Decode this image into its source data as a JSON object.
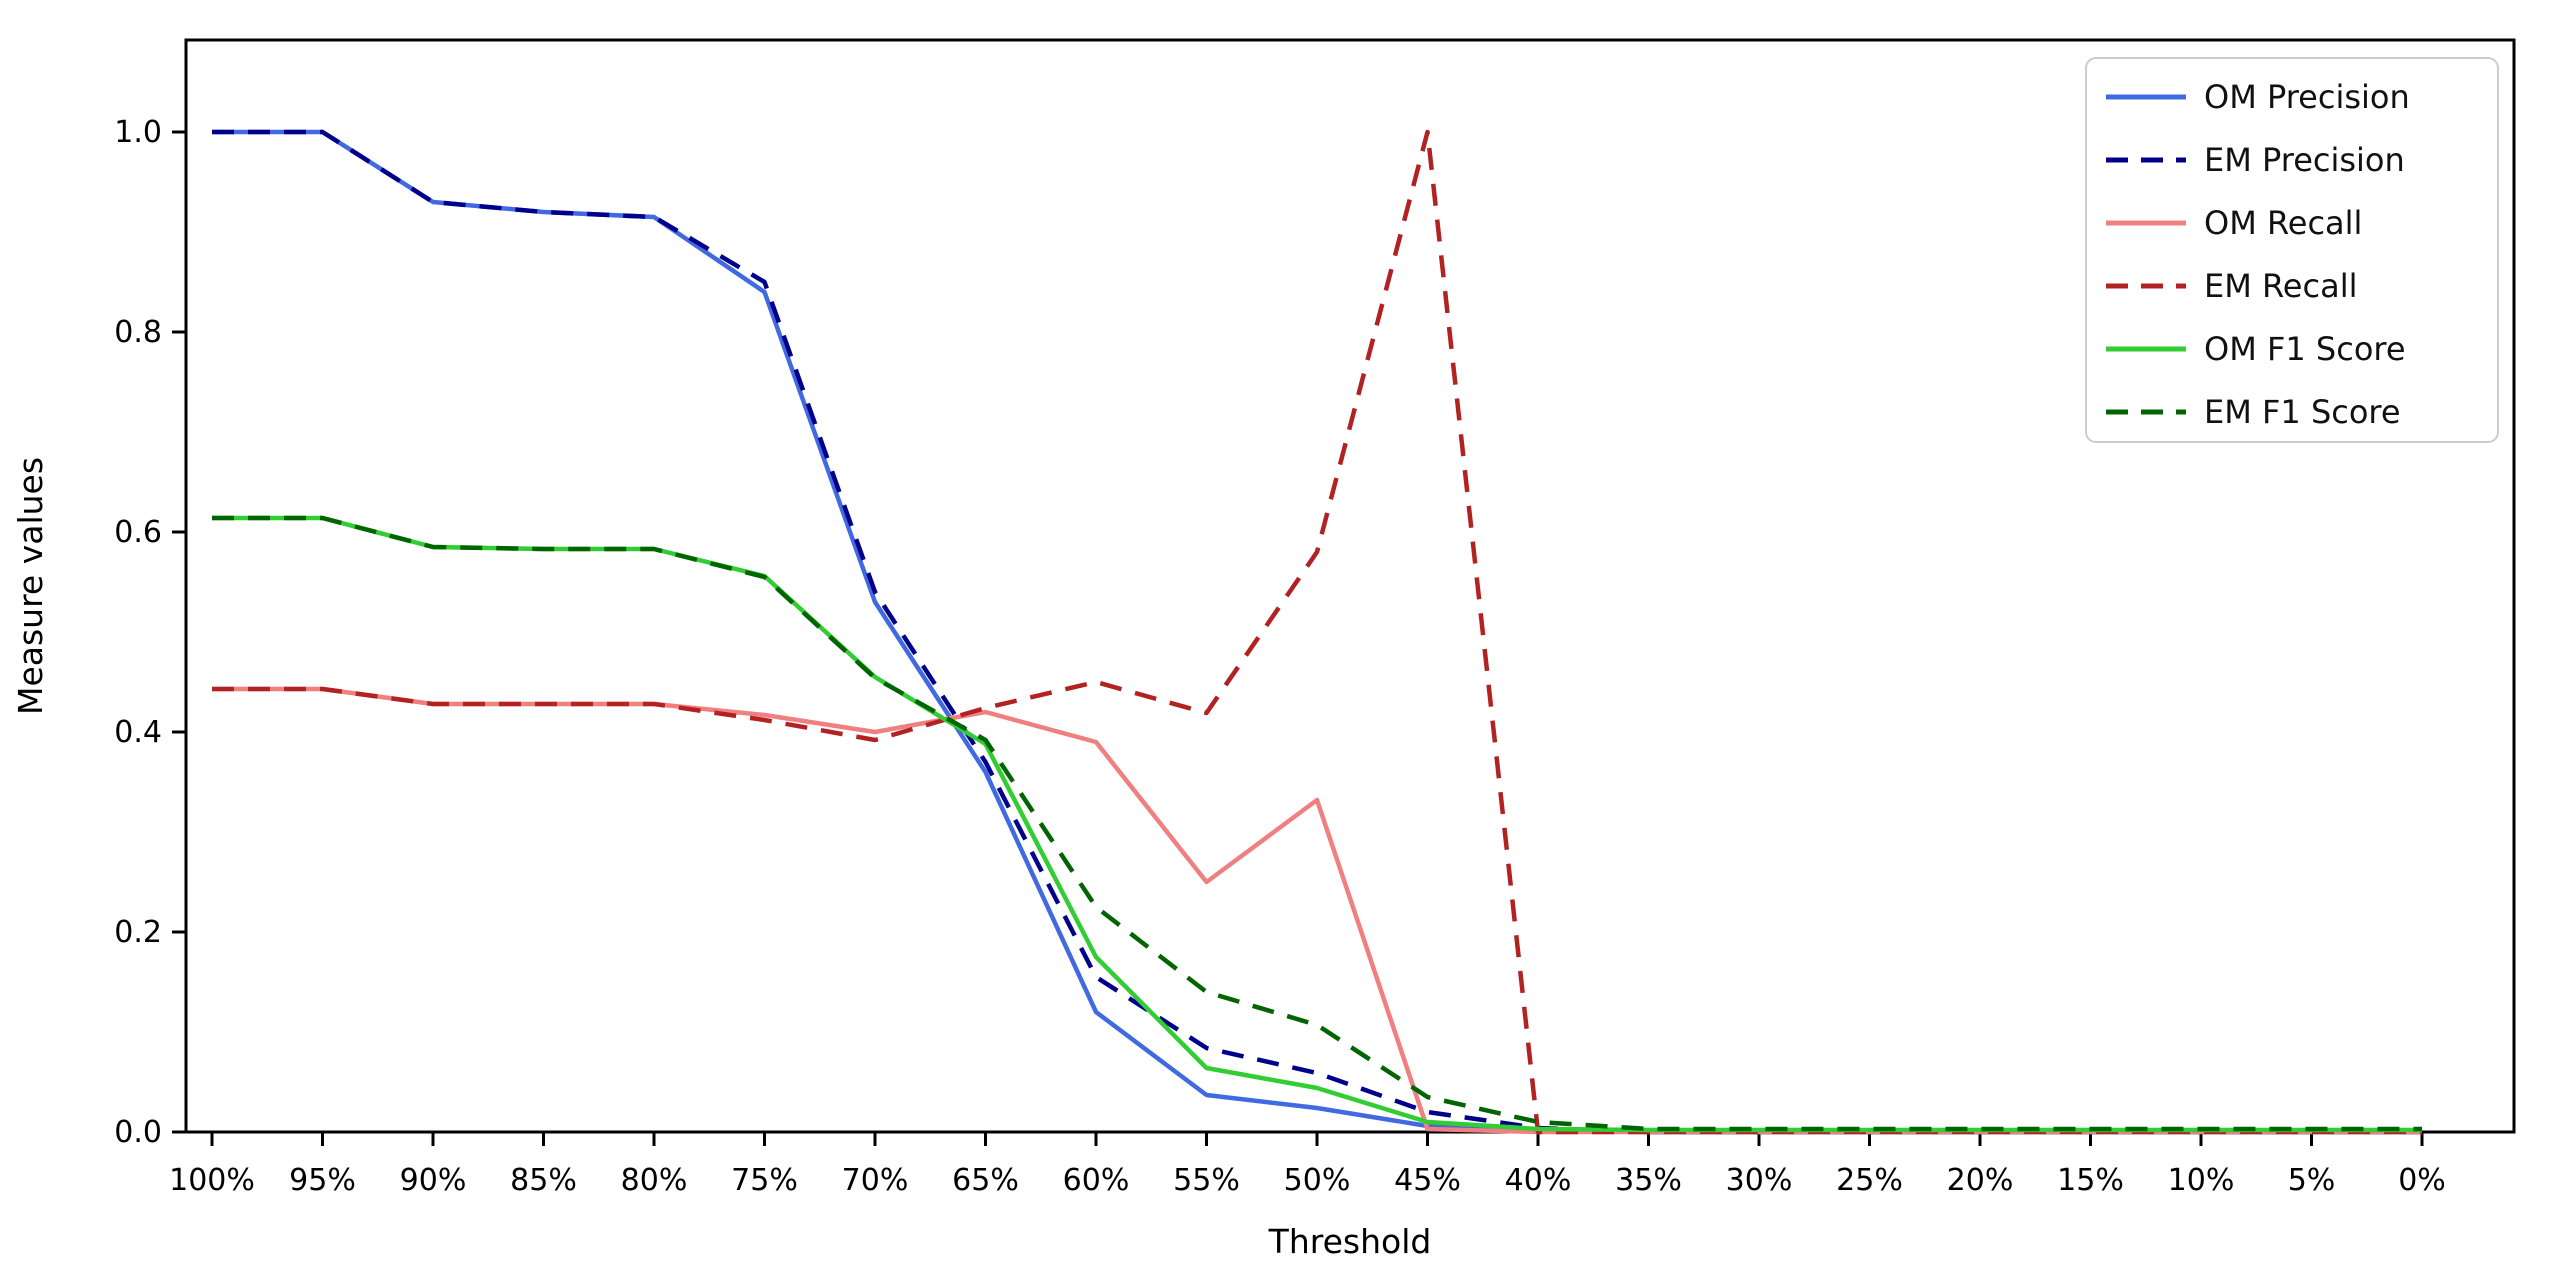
{
  "chart_data": {
    "type": "line",
    "title": "",
    "xlabel": "Threshold",
    "ylabel": "Measure values",
    "x_tick_labels": [
      "100%",
      "95%",
      "90%",
      "85%",
      "80%",
      "75%",
      "70%",
      "65%",
      "60%",
      "55%",
      "50%",
      "45%",
      "40%",
      "35%",
      "30%",
      "25%",
      "20%",
      "15%",
      "10%",
      "5%",
      "0%"
    ],
    "y_tick_labels": [
      "0.0",
      "0.2",
      "0.4",
      "0.6",
      "0.8",
      "1.0"
    ],
    "y_tick_values": [
      0.0,
      0.2,
      0.4,
      0.6,
      0.8,
      1.0
    ],
    "ylim": [
      0.0,
      1.09
    ],
    "grid": false,
    "legend_position": "upper right",
    "axis_color": "#000000",
    "background_color": "#ffffff",
    "legend_border_color": "#cccccc",
    "series": [
      {
        "name": "OM Precision",
        "color": "#4169E1",
        "style": "solid",
        "values": [
          1.0,
          1.0,
          0.93,
          0.92,
          0.915,
          0.84,
          0.53,
          0.36,
          0.12,
          0.037,
          0.024,
          0.006,
          0.002,
          0.0,
          0.0,
          0.0,
          0.0,
          0.0,
          0.0,
          0.0,
          0.0
        ]
      },
      {
        "name": "EM Precision",
        "color": "#00008B",
        "style": "dashed",
        "values": [
          1.0,
          1.0,
          0.93,
          0.92,
          0.915,
          0.85,
          0.54,
          0.37,
          0.155,
          0.084,
          0.059,
          0.02,
          0.004,
          0.0,
          0.0,
          0.0,
          0.0,
          0.0,
          0.0,
          0.0,
          0.0
        ]
      },
      {
        "name": "OM Recall",
        "color": "#F08080",
        "style": "solid",
        "values": [
          0.443,
          0.443,
          0.428,
          0.428,
          0.428,
          0.417,
          0.4,
          0.42,
          0.39,
          0.25,
          0.332,
          0.003,
          0.0,
          0.0,
          0.0,
          0.0,
          0.0,
          0.0,
          0.0,
          0.0,
          0.0
        ]
      },
      {
        "name": "EM Recall",
        "color": "#B22222",
        "style": "dashed",
        "values": [
          0.443,
          0.443,
          0.428,
          0.428,
          0.428,
          0.412,
          0.392,
          0.424,
          0.45,
          0.419,
          0.58,
          1.0,
          0.0,
          0.0,
          0.0,
          0.0,
          0.0,
          0.0,
          0.0,
          0.0,
          0.0
        ]
      },
      {
        "name": "OM F1 Score",
        "color": "#32CD32",
        "style": "solid",
        "values": [
          0.614,
          0.614,
          0.585,
          0.583,
          0.583,
          0.556,
          0.455,
          0.388,
          0.175,
          0.064,
          0.044,
          0.01,
          0.003,
          0.002,
          0.002,
          0.002,
          0.002,
          0.002,
          0.002,
          0.002,
          0.002
        ]
      },
      {
        "name": "EM F1 Score",
        "color": "#006400",
        "style": "dashed",
        "values": [
          0.614,
          0.614,
          0.585,
          0.583,
          0.583,
          0.555,
          0.454,
          0.392,
          0.225,
          0.14,
          0.107,
          0.035,
          0.01,
          0.003,
          0.003,
          0.003,
          0.003,
          0.003,
          0.003,
          0.003,
          0.003
        ]
      }
    ]
  }
}
